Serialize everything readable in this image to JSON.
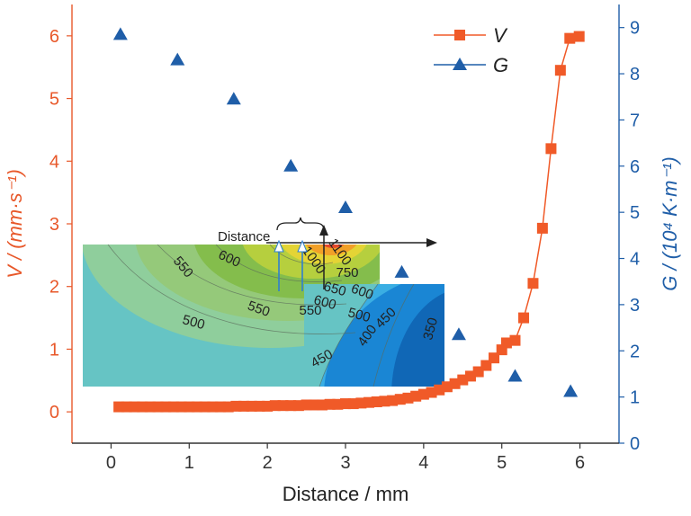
{
  "chart_data": {
    "type": "scatter",
    "xlabel": "Distance / mm",
    "ylabel_left": "V / (mm·s⁻¹)",
    "ylabel_right": "G / (10⁴ K·m⁻¹)",
    "xlim": [
      -0.5,
      6.5
    ],
    "ylim_left": [
      -0.5,
      6.5
    ],
    "ylim_right": [
      0,
      9.5
    ],
    "x_ticks": [
      0,
      1,
      2,
      3,
      4,
      5,
      6
    ],
    "y_left_ticks": [
      0,
      1,
      2,
      3,
      4,
      5,
      6
    ],
    "y_right_ticks": [
      0,
      1,
      2,
      3,
      4,
      5,
      6,
      7,
      8,
      9
    ],
    "legend_position": "top-right",
    "series": [
      {
        "name": "V",
        "axis": "left",
        "color": "#f05a28",
        "marker": "square",
        "line": true,
        "points": [
          [
            0.1,
            0.08
          ],
          [
            0.2,
            0.08
          ],
          [
            0.3,
            0.08
          ],
          [
            0.4,
            0.08
          ],
          [
            0.5,
            0.08
          ],
          [
            0.6,
            0.08
          ],
          [
            0.7,
            0.08
          ],
          [
            0.8,
            0.08
          ],
          [
            0.9,
            0.08
          ],
          [
            1.0,
            0.08
          ],
          [
            1.1,
            0.08
          ],
          [
            1.2,
            0.08
          ],
          [
            1.3,
            0.08
          ],
          [
            1.4,
            0.08
          ],
          [
            1.5,
            0.08
          ],
          [
            1.6,
            0.09
          ],
          [
            1.7,
            0.09
          ],
          [
            1.8,
            0.09
          ],
          [
            1.9,
            0.09
          ],
          [
            2.0,
            0.09
          ],
          [
            2.1,
            0.1
          ],
          [
            2.2,
            0.1
          ],
          [
            2.3,
            0.1
          ],
          [
            2.4,
            0.1
          ],
          [
            2.5,
            0.11
          ],
          [
            2.6,
            0.11
          ],
          [
            2.7,
            0.11
          ],
          [
            2.8,
            0.12
          ],
          [
            2.9,
            0.12
          ],
          [
            3.0,
            0.13
          ],
          [
            3.1,
            0.13
          ],
          [
            3.2,
            0.14
          ],
          [
            3.3,
            0.15
          ],
          [
            3.4,
            0.16
          ],
          [
            3.5,
            0.17
          ],
          [
            3.6,
            0.18
          ],
          [
            3.7,
            0.2
          ],
          [
            3.8,
            0.22
          ],
          [
            3.9,
            0.25
          ],
          [
            4.0,
            0.28
          ],
          [
            4.1,
            0.31
          ],
          [
            4.2,
            0.35
          ],
          [
            4.3,
            0.4
          ],
          [
            4.4,
            0.45
          ],
          [
            4.5,
            0.51
          ],
          [
            4.6,
            0.57
          ],
          [
            4.7,
            0.64
          ],
          [
            4.8,
            0.74
          ],
          [
            4.9,
            0.86
          ],
          [
            5.0,
            0.99
          ],
          [
            5.06,
            1.1
          ],
          [
            5.17,
            1.14
          ],
          [
            5.28,
            1.5
          ],
          [
            5.4,
            2.05
          ],
          [
            5.52,
            2.93
          ],
          [
            5.63,
            4.2
          ],
          [
            5.75,
            5.45
          ],
          [
            5.87,
            5.96
          ],
          [
            5.99,
            5.99
          ]
        ]
      },
      {
        "name": "G",
        "axis": "right",
        "color": "#1f5ea8",
        "marker": "triangle",
        "line": false,
        "points": [
          [
            0.12,
            8.85
          ],
          [
            0.85,
            8.3
          ],
          [
            1.57,
            7.45
          ],
          [
            2.3,
            6.0
          ],
          [
            3.0,
            5.1
          ],
          [
            3.72,
            3.7
          ],
          [
            4.45,
            2.35
          ],
          [
            5.17,
            1.45
          ],
          [
            5.88,
            1.12
          ]
        ]
      }
    ],
    "inset": {
      "annotation": "Distance",
      "contour_labels": [
        "550",
        "600",
        "1000",
        "1100",
        "750",
        "650",
        "600",
        "600",
        "550",
        "550",
        "500",
        "500",
        "450",
        "450",
        "400",
        "350"
      ]
    }
  }
}
